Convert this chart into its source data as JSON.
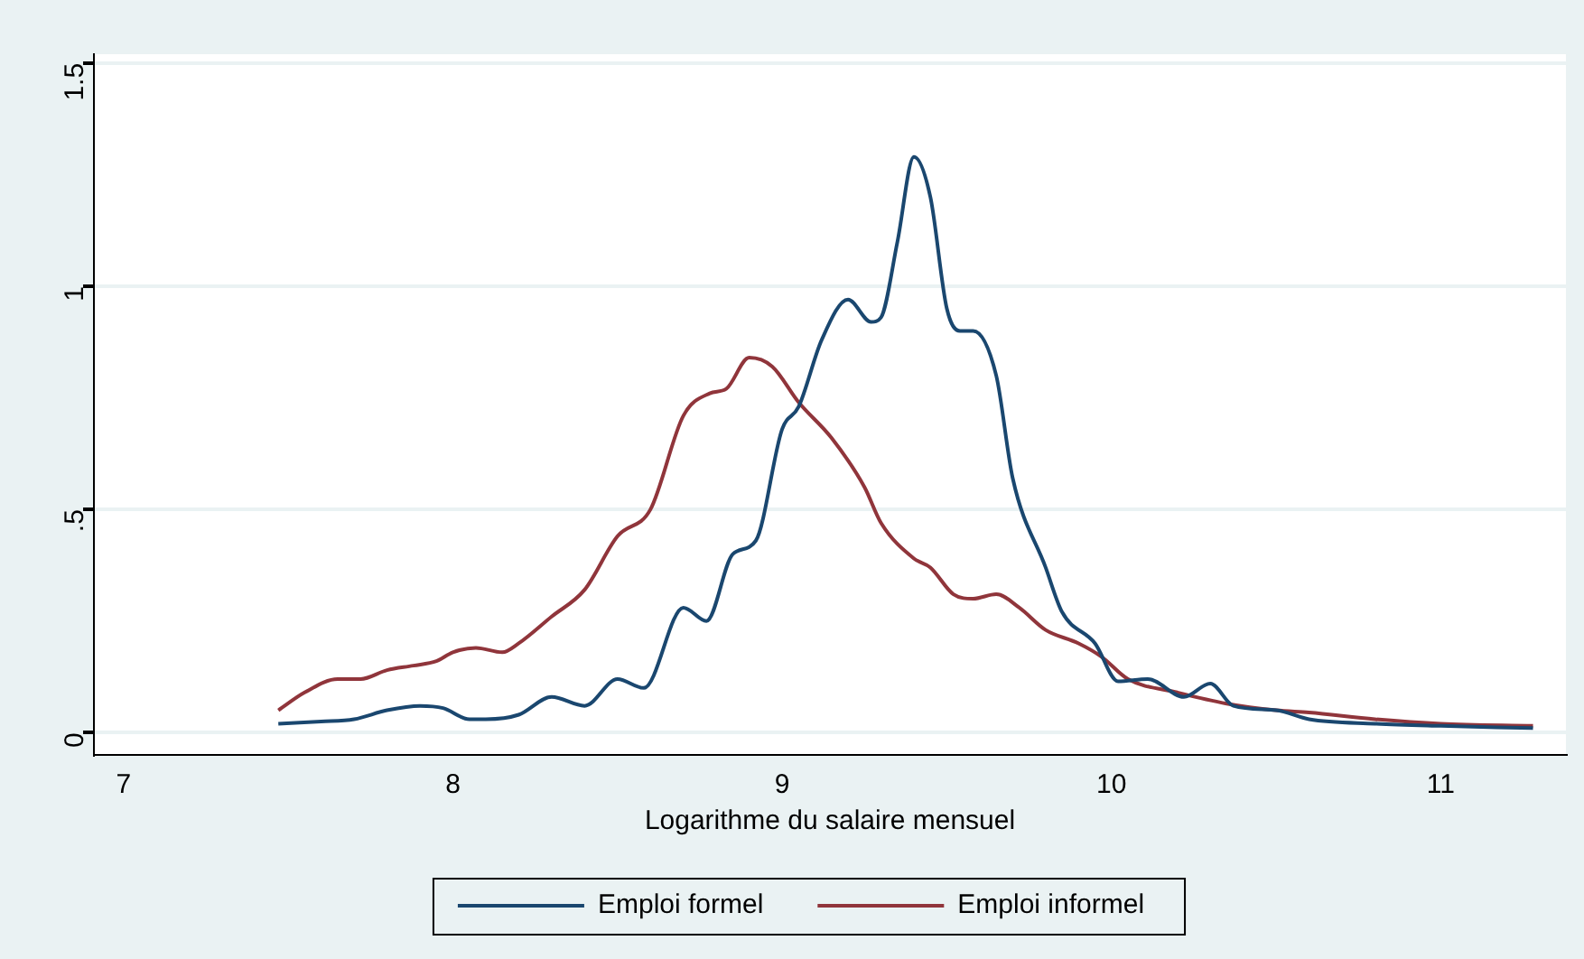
{
  "chart_data": {
    "type": "line",
    "xlabel": "Logarithme du salaire mensuel",
    "xlim": [
      6.91,
      11.38
    ],
    "xticks": [
      7,
      8,
      9,
      10,
      11
    ],
    "ylim": [
      -0.05,
      1.52
    ],
    "yticks": [
      0,
      {
        "value": 0.5,
        "label": ".5"
      },
      1,
      1.5
    ],
    "grid": "y",
    "legend": "bottom",
    "marker": "none",
    "line_style": "solid",
    "series": [
      {
        "name": "Emploi formel",
        "color": "#1a476f",
        "x": [
          7.47,
          7.6,
          7.7,
          7.8,
          7.9,
          7.97,
          8.05,
          8.1,
          8.2,
          8.3,
          8.4,
          8.5,
          8.58,
          8.7,
          8.77,
          8.85,
          8.92,
          9.0,
          9.05,
          9.12,
          9.2,
          9.27,
          9.3,
          9.35,
          9.4,
          9.45,
          9.5,
          9.54,
          9.58,
          9.65,
          9.7,
          9.8,
          9.85,
          9.95,
          10.02,
          10.11,
          10.22,
          10.3,
          10.37,
          10.5,
          10.6,
          10.8,
          11.0,
          11.28
        ],
        "values": [
          0.02,
          0.025,
          0.03,
          0.05,
          0.06,
          0.055,
          0.03,
          0.03,
          0.04,
          0.08,
          0.06,
          0.12,
          0.1,
          0.28,
          0.25,
          0.4,
          0.43,
          0.68,
          0.73,
          0.88,
          0.97,
          0.92,
          0.93,
          1.1,
          1.29,
          1.2,
          0.95,
          0.9,
          0.9,
          0.8,
          0.57,
          0.37,
          0.27,
          0.2,
          0.115,
          0.12,
          0.08,
          0.11,
          0.06,
          0.05,
          0.03,
          0.02,
          0.015,
          0.01
        ]
      },
      {
        "name": "Emploi informel",
        "color": "#90353b",
        "x": [
          7.47,
          7.55,
          7.65,
          7.72,
          7.8,
          7.88,
          7.95,
          8.0,
          8.07,
          8.15,
          8.2,
          8.3,
          8.4,
          8.5,
          8.6,
          8.7,
          8.78,
          8.83,
          8.9,
          8.97,
          9.05,
          9.15,
          9.25,
          9.3,
          9.4,
          9.45,
          9.52,
          9.58,
          9.65,
          9.72,
          9.8,
          9.9,
          9.97,
          10.05,
          10.2,
          10.35,
          10.5,
          10.6,
          10.8,
          11.0,
          11.28
        ],
        "values": [
          0.05,
          0.09,
          0.12,
          0.12,
          0.14,
          0.15,
          0.16,
          0.18,
          0.19,
          0.18,
          0.2,
          0.26,
          0.32,
          0.44,
          0.5,
          0.71,
          0.76,
          0.77,
          0.84,
          0.82,
          0.74,
          0.66,
          0.55,
          0.47,
          0.39,
          0.37,
          0.31,
          0.3,
          0.31,
          0.28,
          0.23,
          0.2,
          0.17,
          0.12,
          0.09,
          0.065,
          0.05,
          0.045,
          0.03,
          0.02,
          0.015
        ]
      }
    ]
  }
}
